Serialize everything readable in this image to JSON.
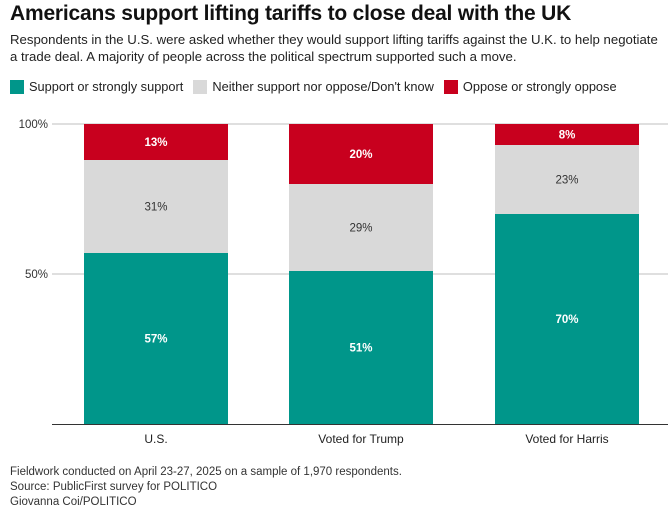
{
  "title": "Americans support lifting tariffs to close deal with the UK",
  "subtitle": "Respondents in the U.S. were asked whether they would support lifting tariffs against the U.K. to help negotiate a trade deal. A majority of people across the political spectrum supported such a move.",
  "legend": [
    {
      "label": "Support or strongly support",
      "color": "#00968a"
    },
    {
      "label": "Neither support nor oppose/Don't know",
      "color": "#d9d9d9"
    },
    {
      "label": "Oppose or strongly oppose",
      "color": "#c8001e"
    }
  ],
  "chart_data": {
    "type": "bar",
    "stacked": true,
    "categories": [
      "U.S.",
      "Voted for Trump",
      "Voted for Harris"
    ],
    "series": [
      {
        "name": "Support or strongly support",
        "values": [
          57,
          51,
          70
        ],
        "labels": [
          "57%",
          "51%",
          "70%"
        ],
        "color": "#00968a",
        "label_color": "#ffffff",
        "label_bold": true
      },
      {
        "name": "Neither support nor oppose/Don't know",
        "values": [
          31,
          29,
          23
        ],
        "labels": [
          "31%",
          "29%",
          "23%"
        ],
        "color": "#d9d9d9",
        "label_color": "#333333",
        "label_bold": false
      },
      {
        "name": "Oppose or strongly oppose",
        "values": [
          13,
          20,
          8
        ],
        "labels": [
          "13%",
          "20%",
          "8%"
        ],
        "color": "#c8001e",
        "label_color": "#ffffff",
        "label_bold": true
      }
    ],
    "y_ticks": [
      {
        "value": 100,
        "label": "100%"
      },
      {
        "value": 50,
        "label": "50%"
      }
    ],
    "ylim": [
      0,
      100
    ],
    "grid": true,
    "legend_position": "top-left",
    "xlabel": "",
    "ylabel": ""
  },
  "footer": {
    "note": "Fieldwork conducted on April 23-27, 2025 on a sample of 1,970 respondents.",
    "source": "Source: PublicFirst survey for POLITICO",
    "credit": "Giovanna Coi/POLITICO"
  }
}
